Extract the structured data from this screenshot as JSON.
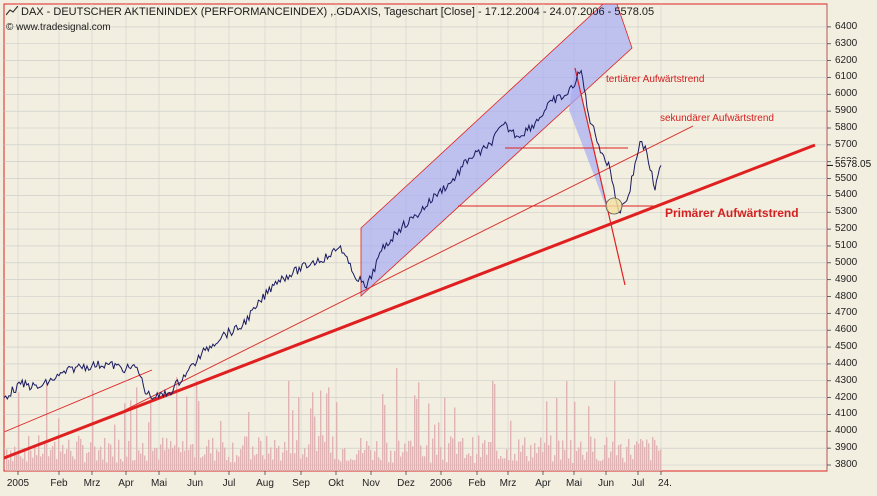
{
  "header": {
    "title": "DAX  - DEUTSCHER AKTIENINDEX (PERFORMANCEINDEX) ,.GDAXIS, Tageschart [Close] - 17.12.2004 - 24.07.2006 - 5578.05",
    "copyright": "© www.tradesignal.com",
    "last_value": "5578.05"
  },
  "annotations": {
    "tertiary": "tertiärer Aufwärtstrend",
    "secondary": "sekundärer Aufwärtstrend",
    "primary": "Primärer Aufwärtstrend"
  },
  "colors": {
    "background": "#f2efe0",
    "price_line": "#1a1a60",
    "trend_red": "#e02020",
    "channel_fill": "#a8acf4",
    "volume": "#e0b4b4"
  },
  "chart_data": {
    "type": "line",
    "title": "DAX  - DEUTSCHER AKTIENINDEX (PERFORMANCEINDEX) ,.GDAXIS, Tageschart [Close] - 17.12.2004 - 24.07.2006 - 5578.05",
    "ylim": [
      3800,
      6500
    ],
    "y_ticks": [
      3800,
      3900,
      4000,
      4100,
      4200,
      4300,
      4400,
      4500,
      4600,
      4700,
      4800,
      4900,
      5000,
      5100,
      5200,
      5300,
      5400,
      5500,
      5600,
      5700,
      5800,
      5900,
      6000,
      6100,
      6200,
      6300,
      6400
    ],
    "x_ticks": [
      "2005",
      "Feb",
      "Mrz",
      "Apr",
      "Mai",
      "Jun",
      "Jul",
      "Aug",
      "Sep",
      "Okt",
      "Nov",
      "Dez",
      "2006",
      "Feb",
      "Mrz",
      "Apr",
      "Mai",
      "Jun",
      "Jul",
      "24."
    ],
    "grid": true,
    "series": [
      {
        "x": [
          "2004-12-17",
          "2005-01-03",
          "2005-01-17",
          "2005-02-01",
          "2005-02-15",
          "2005-03-01",
          "2005-03-15",
          "2005-04-01",
          "2005-04-11",
          "2005-04-20",
          "2005-04-28",
          "2005-05-10",
          "2005-05-25",
          "2005-06-10",
          "2005-06-25",
          "2005-07-10",
          "2005-07-25",
          "2005-08-10",
          "2005-08-25",
          "2005-09-10",
          "2005-09-25",
          "2005-10-05",
          "2005-10-15",
          "2005-10-28",
          "2005-11-10",
          "2005-11-25",
          "2005-12-10",
          "2005-12-30",
          "2006-01-10",
          "2006-01-25",
          "2006-02-10",
          "2006-02-25",
          "2006-03-10",
          "2006-03-25",
          "2006-04-10",
          "2006-04-25",
          "2006-05-08",
          "2006-05-15",
          "2006-05-25",
          "2006-06-05",
          "2006-06-13",
          "2006-06-22",
          "2006-07-03",
          "2006-07-10",
          "2006-07-18",
          "2006-07-24"
        ],
        "values": [
          4200,
          4280,
          4260,
          4330,
          4380,
          4390,
          4400,
          4370,
          4380,
          4220,
          4200,
          4230,
          4350,
          4480,
          4570,
          4610,
          4740,
          4890,
          4940,
          5000,
          5040,
          5100,
          4950,
          4850,
          5070,
          5200,
          5280,
          5420,
          5480,
          5620,
          5680,
          5820,
          5750,
          5830,
          5960,
          6000,
          6140,
          5880,
          5700,
          5550,
          5300,
          5400,
          5720,
          5650,
          5430,
          5578
        ]
      }
    ],
    "volume_present": true
  }
}
